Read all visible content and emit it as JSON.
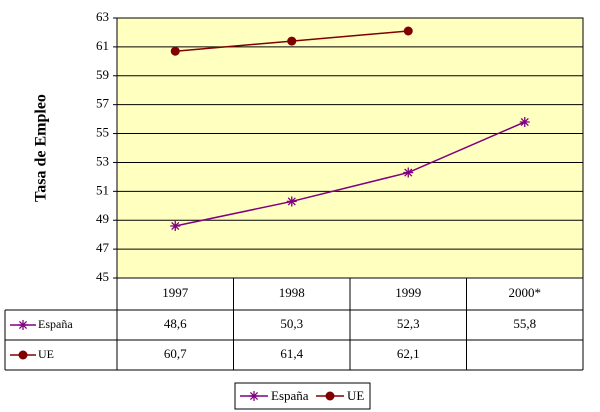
{
  "chart_data": {
    "type": "line",
    "y_label": "Tasa de Empleo",
    "categories": [
      "1997",
      "1998",
      "1999",
      "2000*"
    ],
    "series": [
      {
        "name": "España",
        "color": "#800080",
        "marker": "star",
        "values": [
          48.6,
          50.3,
          52.3,
          55.8
        ],
        "value_labels": [
          "48,6",
          "50,3",
          "52,3",
          "55,8"
        ]
      },
      {
        "name": "UE",
        "color": "#800000",
        "marker": "circle",
        "values": [
          60.7,
          61.4,
          62.1,
          null
        ],
        "value_labels": [
          "60,7",
          "61,4",
          "62,1",
          null
        ]
      }
    ],
    "ylim": [
      45,
      63
    ],
    "yticks": [
      45,
      47,
      49,
      51,
      53,
      55,
      57,
      59,
      61,
      63
    ],
    "grid": true,
    "plot_background": "#ffffc0",
    "legend": "bottom",
    "data_table": true
  }
}
